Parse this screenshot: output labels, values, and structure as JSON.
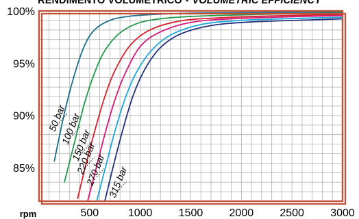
{
  "chart_data": {
    "type": "line",
    "title": "RENDIMENTO VOLUMETRICO",
    "title_separator": "-",
    "subtitle": "VOLUMETRIC EFFICIENCY",
    "xlabel": "rpm",
    "ylabel": "",
    "xlim": [
      0,
      3000
    ],
    "ylim": [
      81.8,
      100
    ],
    "xticks": [
      500,
      1000,
      1500,
      2000,
      2500,
      3000
    ],
    "xtick_labels": [
      "500",
      "1000",
      "1500",
      "2000",
      "2500",
      "3000"
    ],
    "yticks": [
      85,
      90,
      95,
      100
    ],
    "ytick_labels": [
      "85%",
      "90%",
      "95%",
      "100%"
    ],
    "grid": true,
    "frame_color": "#c0503a",
    "grid_color": "#b0b0b0",
    "series": [
      {
        "name": "50 bar",
        "color": "#1a6e8a",
        "x": [
          150,
          250,
          350,
          450,
          550,
          700,
          900,
          1200,
          1600,
          2200,
          3000
        ],
        "y": [
          85.6,
          90.2,
          93.9,
          96.7,
          98.2,
          99.1,
          99.5,
          99.7,
          99.8,
          99.85,
          99.9
        ]
      },
      {
        "name": "100 bar",
        "color": "#1f9a48",
        "x": [
          250,
          350,
          450,
          550,
          650,
          800,
          1000,
          1300,
          1700,
          2300,
          3000
        ],
        "y": [
          83.6,
          87.4,
          91.2,
          94.1,
          96.2,
          97.9,
          98.9,
          99.35,
          99.55,
          99.7,
          99.8
        ]
      },
      {
        "name": "150 bar",
        "color": "#d41f2a",
        "x": [
          380,
          450,
          550,
          650,
          750,
          900,
          1100,
          1400,
          1800,
          2400,
          3000
        ],
        "y": [
          82.0,
          84.8,
          88.5,
          91.8,
          94.3,
          96.7,
          98.2,
          99.05,
          99.35,
          99.55,
          99.65
        ]
      },
      {
        "name": "220 bar",
        "color": "#d6177a",
        "x": [
          480,
          550,
          650,
          750,
          850,
          1000,
          1200,
          1500,
          1900,
          2500,
          3000
        ],
        "y": [
          81.8,
          84.4,
          88.2,
          91.5,
          94.0,
          96.6,
          98.0,
          98.9,
          99.25,
          99.45,
          99.55
        ]
      },
      {
        "name": "270 bar",
        "color": "#1aa7d8",
        "x": [
          570,
          650,
          750,
          850,
          950,
          1100,
          1300,
          1600,
          2000,
          2600,
          3000
        ],
        "y": [
          81.8,
          84.8,
          88.5,
          91.6,
          93.9,
          96.1,
          97.7,
          98.7,
          99.1,
          99.3,
          99.4
        ]
      },
      {
        "name": "315 bar",
        "color": "#1f2f7a",
        "x": [
          650,
          730,
          830,
          930,
          1050,
          1200,
          1400,
          1700,
          2100,
          2700,
          3000
        ],
        "y": [
          81.8,
          85.0,
          88.7,
          91.9,
          94.5,
          96.5,
          97.8,
          98.6,
          98.95,
          99.15,
          99.25
        ]
      }
    ]
  }
}
